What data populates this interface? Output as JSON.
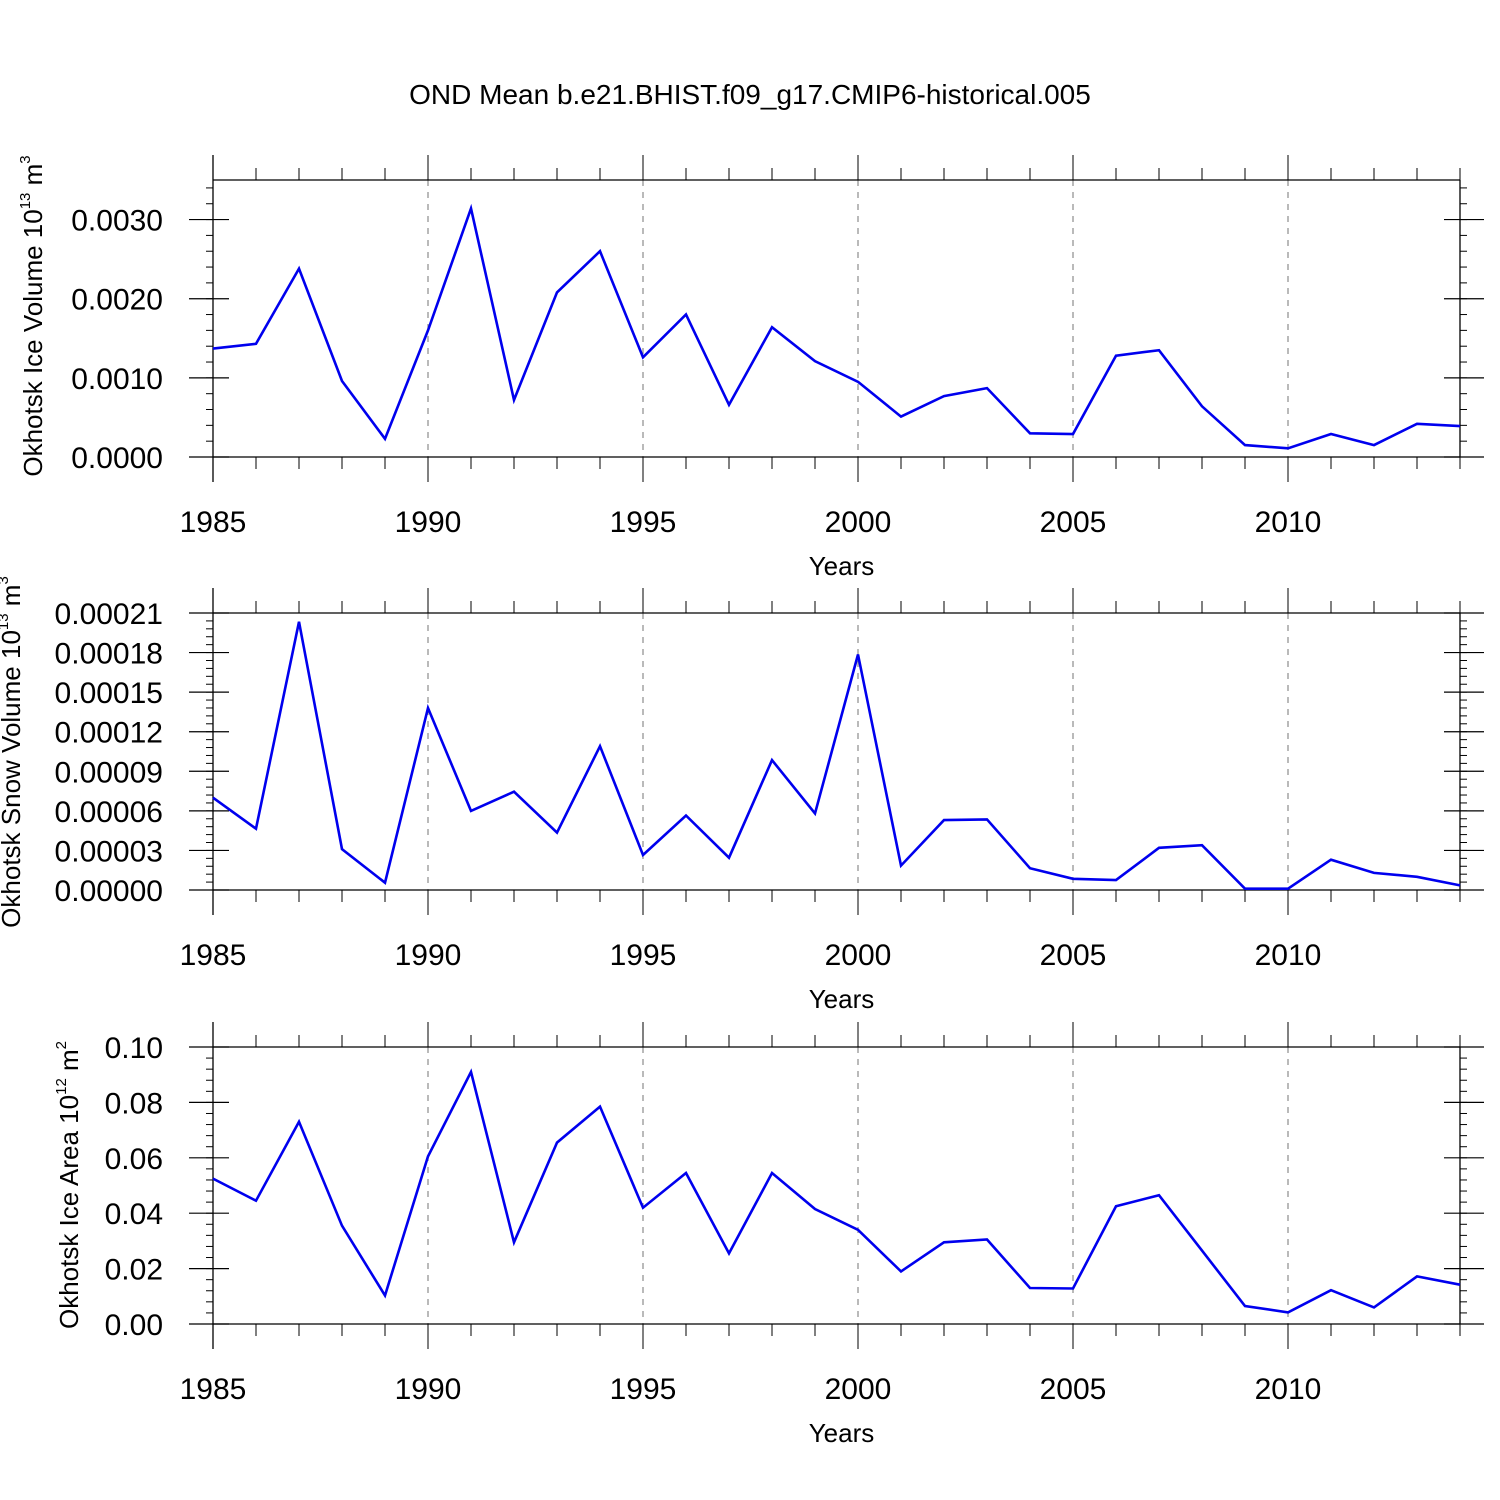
{
  "figure": {
    "title": "OND Mean b.e21.BHIST.f09_g17.CMIP6-historical.005",
    "line_color": "#0000ee",
    "grid_color": "#8c8c8c"
  },
  "chart_data": [
    {
      "type": "line",
      "ylabel": "Okhotsk Ice Volume 10",
      "ylabel_exponent": "13",
      "ylabel_unit": "m",
      "ylabel_unit_exponent": "3",
      "xlabel": "Years",
      "xlim": [
        1985,
        2014
      ],
      "ylim": [
        0,
        0.0035
      ],
      "xticks": [
        1985,
        1990,
        1995,
        2000,
        2005,
        2010
      ],
      "xtick_labels": [
        "1985",
        "1990",
        "1995",
        "2000",
        "2005",
        "2010"
      ],
      "yticks": [
        0,
        0.001,
        0.002,
        0.003
      ],
      "ytick_labels": [
        "0.0000",
        "0.0010",
        "0.0020",
        "0.0030"
      ],
      "grid": "vertical dashed at major x ticks",
      "x": [
        1985,
        1986,
        1987,
        1988,
        1989,
        1990,
        1991,
        1992,
        1993,
        1994,
        1995,
        1996,
        1997,
        1998,
        1999,
        2000,
        2001,
        2002,
        2003,
        2004,
        2005,
        2006,
        2007,
        2008,
        2009,
        2010,
        2011,
        2012,
        2013,
        2014
      ],
      "series": [
        {
          "values": [
            0.00137,
            0.00143,
            0.00238,
            0.00096,
            0.00023,
            0.0016,
            0.00314,
            0.00072,
            0.00208,
            0.0026,
            0.00126,
            0.0018,
            0.00066,
            0.00164,
            0.00121,
            0.00095,
            0.00051,
            0.00077,
            0.00087,
            0.0003,
            0.00029,
            0.00128,
            0.00135,
            0.00064,
            0.00015,
            0.00011,
            0.00029,
            0.00015,
            0.00042,
            0.00039
          ]
        }
      ]
    },
    {
      "type": "line",
      "ylabel": "Okhotsk Snow Volume 10",
      "ylabel_exponent": "13",
      "ylabel_unit": "m",
      "ylabel_unit_exponent": "3",
      "xlabel": "Years",
      "xlim": [
        1985,
        2014
      ],
      "ylim": [
        0,
        0.00021
      ],
      "xticks": [
        1985,
        1990,
        1995,
        2000,
        2005,
        2010
      ],
      "xtick_labels": [
        "1985",
        "1990",
        "1995",
        "2000",
        "2005",
        "2010"
      ],
      "yticks": [
        0,
        3e-05,
        6e-05,
        9e-05,
        0.00012,
        0.00015,
        0.00018,
        0.00021
      ],
      "ytick_labels": [
        "0.00000",
        "0.00003",
        "0.00006",
        "0.00009",
        "0.00012",
        "0.00015",
        "0.00018",
        "0.00021"
      ],
      "grid": "vertical dashed at major x ticks",
      "x": [
        1985,
        1986,
        1987,
        1988,
        1989,
        1990,
        1991,
        1992,
        1993,
        1994,
        1995,
        1996,
        1997,
        1998,
        1999,
        2000,
        2001,
        2002,
        2003,
        2004,
        2005,
        2006,
        2007,
        2008,
        2009,
        2010,
        2011,
        2012,
        2013,
        2014
      ],
      "series": [
        {
          "values": [
            7e-05,
            4.65e-05,
            0.0002033,
            3.1e-05,
            5.5e-06,
            0.000138,
            6e-05,
            7.45e-05,
            4.35e-05,
            0.000109,
            2.65e-05,
            5.65e-05,
            2.45e-05,
            9.85e-05,
            5.8e-05,
            0.0001785,
            1.85e-05,
            5.3e-05,
            5.35e-05,
            1.65e-05,
            8.5e-06,
            7.5e-06,
            3.2e-05,
            3.4e-05,
            1e-06,
            1e-06,
            2.3e-05,
            1.3e-05,
            1e-05,
            3.5e-06
          ]
        }
      ]
    },
    {
      "type": "line",
      "ylabel": "Okhotsk Ice Area 10",
      "ylabel_exponent": "12",
      "ylabel_unit": "m",
      "ylabel_unit_exponent": "2",
      "xlabel": "Years",
      "xlim": [
        1985,
        2014
      ],
      "ylim": [
        0,
        0.1
      ],
      "xticks": [
        1985,
        1990,
        1995,
        2000,
        2005,
        2010
      ],
      "xtick_labels": [
        "1985",
        "1990",
        "1995",
        "2000",
        "2005",
        "2010"
      ],
      "yticks": [
        0,
        0.02,
        0.04,
        0.06,
        0.08,
        0.1
      ],
      "ytick_labels": [
        "0.00",
        "0.02",
        "0.04",
        "0.06",
        "0.08",
        "0.10"
      ],
      "grid": "vertical dashed at major x ticks",
      "x": [
        1985,
        1986,
        1987,
        1988,
        1989,
        1990,
        1991,
        1992,
        1993,
        1994,
        1995,
        1996,
        1997,
        1998,
        1999,
        2000,
        2001,
        2002,
        2003,
        2004,
        2005,
        2006,
        2007,
        2008,
        2009,
        2010,
        2011,
        2012,
        2013,
        2014
      ],
      "series": [
        {
          "values": [
            0.0525,
            0.0445,
            0.073,
            0.0355,
            0.0103,
            0.0605,
            0.091,
            0.0295,
            0.0655,
            0.0785,
            0.042,
            0.0545,
            0.0255,
            0.0545,
            0.0415,
            0.034,
            0.019,
            0.0295,
            0.0305,
            0.013,
            0.0128,
            0.0425,
            0.0465,
            0.0265,
            0.0065,
            0.0042,
            0.0122,
            0.006,
            0.0172,
            0.0142
          ]
        }
      ]
    }
  ]
}
